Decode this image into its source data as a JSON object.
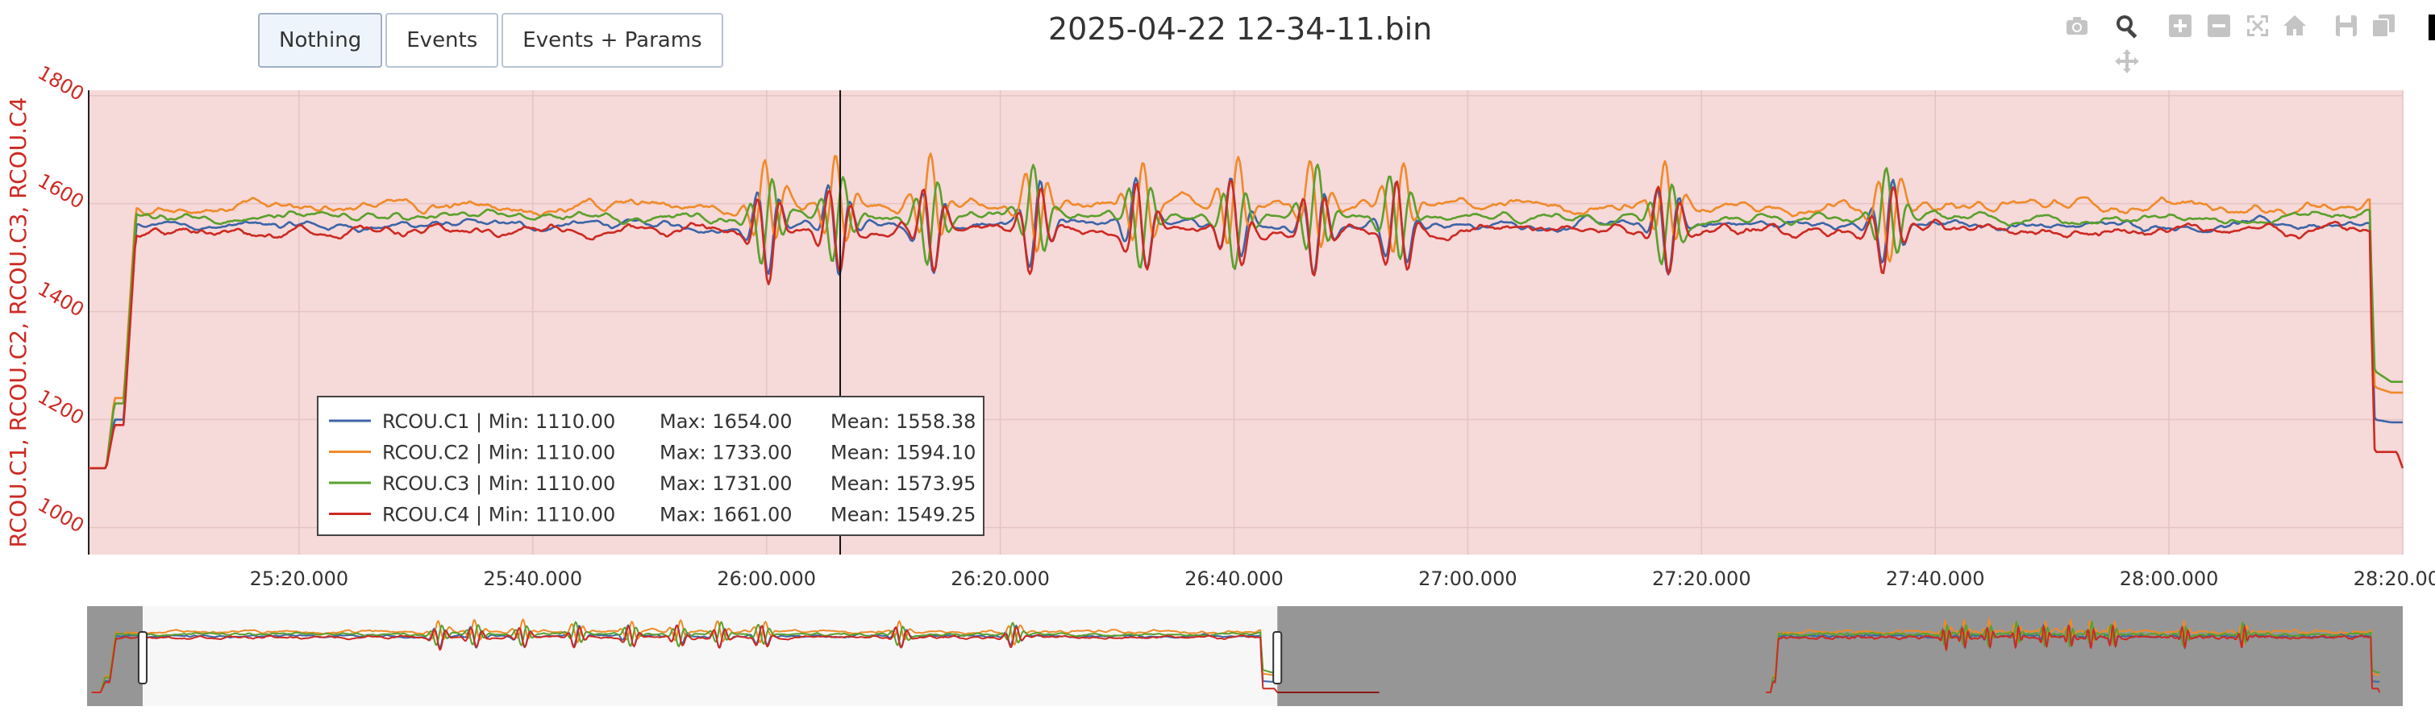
{
  "toolbar": {
    "buttons": [
      {
        "label": "Nothing",
        "active": true
      },
      {
        "label": "Events",
        "active": false
      },
      {
        "label": "Events + Params",
        "active": false
      }
    ]
  },
  "modebar": {
    "icons": [
      "camera-icon",
      "zoom-icon",
      "zoom-in-icon",
      "zoom-out-icon",
      "autoscale-icon",
      "home-icon",
      "save-icon",
      "copy-icon",
      "pan-icon"
    ]
  },
  "chart_data": {
    "type": "line",
    "title": "2025-04-22 12-34-11.bin",
    "ylabel": "RCOU.C1, RCOU.C2, RCOU.C3, RCOU.C4",
    "ylim": [
      950,
      1810
    ],
    "yticks": [
      1000,
      1200,
      1400,
      1600,
      1800
    ],
    "xlim_seconds": [
      1502,
      1700
    ],
    "xtick_labels": [
      "25:20.000",
      "25:40.000",
      "26:00.000",
      "26:20.000",
      "26:40.000",
      "27:00.000",
      "27:20.000",
      "27:40.000",
      "28:00.000",
      "28:20.000"
    ],
    "xtick_seconds": [
      1520,
      1540,
      1560,
      1580,
      1600,
      1620,
      1640,
      1660,
      1680,
      1700
    ],
    "cursor_x_label": "26:05.500",
    "plot_background": "#f6d9d9",
    "grid": true,
    "legend_position": "bottom-left inside plot",
    "series": [
      {
        "name": "RCOU.C1",
        "color": "#3c65a8",
        "min": "1110.00",
        "max": "1654.00",
        "mean": "1558.38",
        "base": 1560,
        "amp": 16,
        "phases": [
          [
            1502,
            1110
          ],
          [
            1503.5,
            1110
          ],
          [
            1504.2,
            1200
          ],
          [
            1505.0,
            1200
          ],
          [
            1506.0,
            1540
          ],
          [
            1700,
            1560
          ]
        ],
        "tail": [
          [
            1697.2,
            1500
          ],
          [
            1697.6,
            1200
          ],
          [
            1699.0,
            1195
          ],
          [
            1700,
            1195
          ]
        ]
      },
      {
        "name": "RCOU.C2",
        "color": "#ef8a2a",
        "min": "1110.00",
        "max": "1733.00",
        "mean": "1594.10",
        "base": 1596,
        "amp": 22,
        "phases": [
          [
            1502,
            1110
          ],
          [
            1503.5,
            1110
          ],
          [
            1504.2,
            1240
          ],
          [
            1505.0,
            1240
          ],
          [
            1506.0,
            1580
          ],
          [
            1700,
            1596
          ]
        ],
        "tail": [
          [
            1697.2,
            1550
          ],
          [
            1697.6,
            1260
          ],
          [
            1699.0,
            1250
          ],
          [
            1700,
            1250
          ]
        ]
      },
      {
        "name": "RCOU.C3",
        "color": "#5aa02c",
        "min": "1110.00",
        "max": "1731.00",
        "mean": "1573.95",
        "base": 1575,
        "amp": 20,
        "phases": [
          [
            1502,
            1110
          ],
          [
            1503.5,
            1110
          ],
          [
            1504.2,
            1230
          ],
          [
            1505.0,
            1230
          ],
          [
            1506.0,
            1560
          ],
          [
            1700,
            1575
          ]
        ],
        "tail": [
          [
            1697.2,
            1560
          ],
          [
            1697.6,
            1290
          ],
          [
            1699.0,
            1270
          ],
          [
            1700,
            1270
          ]
        ]
      },
      {
        "name": "RCOU.C4",
        "color": "#cc2a23",
        "min": "1110.00",
        "max": "1661.00",
        "mean": "1549.25",
        "base": 1551,
        "amp": 18,
        "phases": [
          [
            1502,
            1110
          ],
          [
            1503.5,
            1110
          ],
          [
            1504.2,
            1190
          ],
          [
            1505.0,
            1190
          ],
          [
            1506.0,
            1530
          ],
          [
            1700,
            1551
          ]
        ],
        "tail": [
          [
            1697.2,
            1480
          ],
          [
            1697.6,
            1140
          ],
          [
            1699.5,
            1140
          ],
          [
            1700,
            1110
          ]
        ]
      }
    ],
    "disturbances_seconds": [
      1560,
      1566,
      1574,
      1583,
      1592,
      1600,
      1607,
      1614,
      1637,
      1656
    ],
    "rangeslider": {
      "window_start_label": "",
      "window_end_label": "",
      "window_fraction": [
        0.024,
        0.514
      ],
      "rebroadcast_fraction": [
        0.725,
        1.0
      ],
      "flat_tail_fraction": [
        0.514,
        0.558
      ],
      "background_shade": "#969696"
    }
  }
}
